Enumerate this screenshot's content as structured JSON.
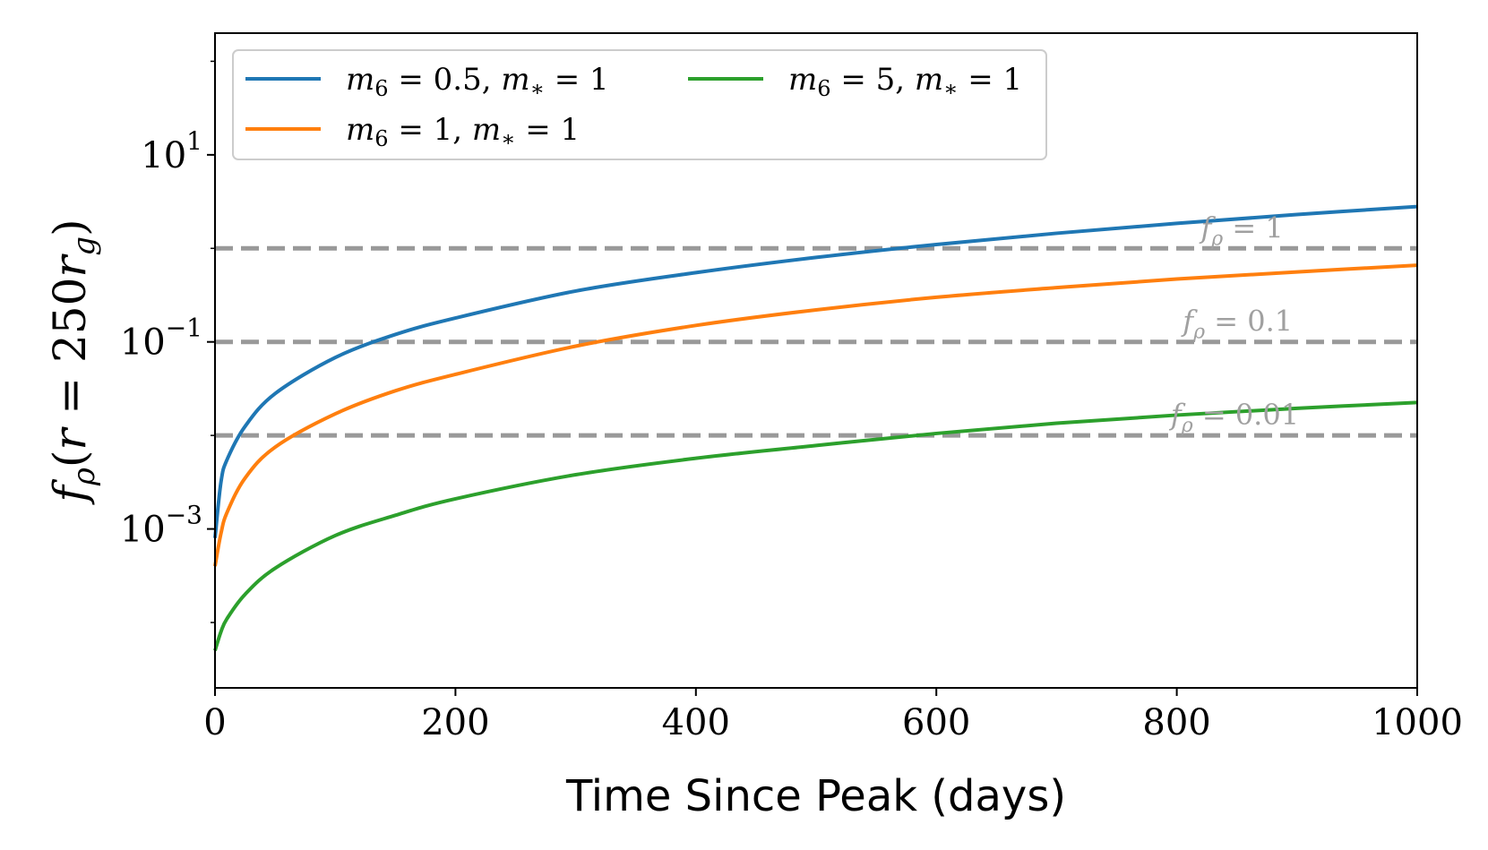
{
  "chart_data": {
    "type": "line",
    "title": "",
    "xlabel": "Time Since Peak (days)",
    "ylabel": {
      "f": "f",
      "f_sub": "ρ",
      "open": "(",
      "r": "r",
      "eq": " = 250",
      "r2": "r",
      "r2_sub": "g",
      "close": ")"
    },
    "xlim": [
      0,
      1000
    ],
    "ylim": [
      2e-05,
      200
    ],
    "yscale": "log",
    "xticks": [
      {
        "value": 0,
        "label": "0"
      },
      {
        "value": 200,
        "label": "200"
      },
      {
        "value": 400,
        "label": "400"
      },
      {
        "value": 600,
        "label": "600"
      },
      {
        "value": 800,
        "label": "800"
      },
      {
        "value": 1000,
        "label": "1000"
      }
    ],
    "yticks": [
      {
        "value": 10,
        "base": "10",
        "exp": "1"
      },
      {
        "value": 0.1,
        "base": "10",
        "exp": "−1"
      },
      {
        "value": 0.001,
        "base": "10",
        "exp": "−3"
      }
    ],
    "legend_position": "top-left",
    "series": [
      {
        "key": "blue",
        "name": "m6 = 0.5, m* = 1",
        "legend": {
          "a": "m",
          "a_sub": "6",
          "a_val": " = 0.5,  ",
          "b": "m",
          "b_sub": "∗",
          "b_val": " = 1"
        },
        "color": "#1f77b4",
        "x": [
          0,
          5,
          10,
          25,
          50,
          100,
          150,
          200,
          300,
          400,
          500,
          600,
          700,
          800,
          900,
          1000
        ],
        "y": [
          0.0008,
          0.0032,
          0.0055,
          0.0125,
          0.028,
          0.068,
          0.12,
          0.18,
          0.35,
          0.55,
          0.8,
          1.1,
          1.45,
          1.85,
          2.3,
          2.8
        ]
      },
      {
        "key": "orange",
        "name": "m6 = 1, m* = 1",
        "legend": {
          "a": "m",
          "a_sub": "6",
          "a_val": " = 1,  ",
          "b": "m",
          "b_sub": "∗",
          "b_val": " = 1"
        },
        "color": "#ff7f0e",
        "x": [
          0,
          5,
          10,
          25,
          50,
          100,
          150,
          200,
          300,
          400,
          500,
          600,
          700,
          800,
          900,
          1000
        ],
        "y": [
          0.0004,
          0.0009,
          0.0015,
          0.0035,
          0.0075,
          0.017,
          0.03,
          0.045,
          0.09,
          0.15,
          0.22,
          0.3,
          0.38,
          0.47,
          0.56,
          0.66
        ]
      },
      {
        "key": "green",
        "name": "m6 = 5, m* = 1",
        "legend": {
          "a": "m",
          "a_sub": "6",
          "a_val": " = 5,  ",
          "b": "m",
          "b_sub": "∗",
          "b_val": " = 1"
        },
        "color": "#2ca02c",
        "x": [
          0,
          5,
          10,
          25,
          50,
          100,
          150,
          200,
          300,
          400,
          500,
          600,
          700,
          800,
          900,
          1000
        ],
        "y": [
          5e-05,
          8e-05,
          0.00011,
          0.0002,
          0.00038,
          0.00085,
          0.0014,
          0.0021,
          0.0038,
          0.0057,
          0.0078,
          0.0105,
          0.0135,
          0.0165,
          0.0195,
          0.0225
        ]
      }
    ],
    "reference_lines": [
      {
        "y": 1,
        "label_base": "f",
        "label_sub": "ρ",
        "label_val": " = 1",
        "label_x": 820
      },
      {
        "y": 0.1,
        "label_base": "f",
        "label_sub": "ρ",
        "label_val": " = 0.1",
        "label_x": 805
      },
      {
        "y": 0.01,
        "label_base": "f",
        "label_sub": "ρ",
        "label_val": " = 0.01",
        "label_x": 795
      }
    ],
    "reference_color": "#999999"
  }
}
